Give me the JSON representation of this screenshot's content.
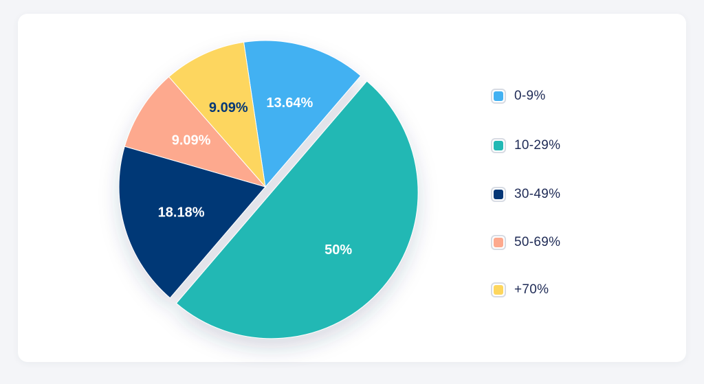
{
  "chart_data": {
    "type": "pie",
    "title": "",
    "legend_placement": "right",
    "series": [
      {
        "name": "0-9%",
        "value": 13.64,
        "label": "13.64%",
        "color": "#42b1f2",
        "label_color": "#ffffff"
      },
      {
        "name": "10-29%",
        "value": 50,
        "label": "50%",
        "color": "#21b8b4",
        "label_color": "#ffffff",
        "exploded": true
      },
      {
        "name": "30-49%",
        "value": 18.18,
        "label": "18.18%",
        "color": "#043776",
        "label_color": "#ffffff"
      },
      {
        "name": "50-69%",
        "value": 9.09,
        "label": "9.09%",
        "color": "#fda98e",
        "label_color": "#ffffff"
      },
      {
        "name": "+70%",
        "value": 9.09,
        "label": "9.09%",
        "color": "#fdd65e",
        "label_color": "#043776"
      }
    ]
  },
  "legend": {
    "items": [
      {
        "label": "0-9%",
        "color": "#42b1f2"
      },
      {
        "label": "10-29%",
        "color": "#21b8b4"
      },
      {
        "label": "30-49%",
        "color": "#043776"
      },
      {
        "label": "50-69%",
        "color": "#fda98e"
      },
      {
        "label": "+70%",
        "color": "#fdd65e"
      }
    ]
  }
}
